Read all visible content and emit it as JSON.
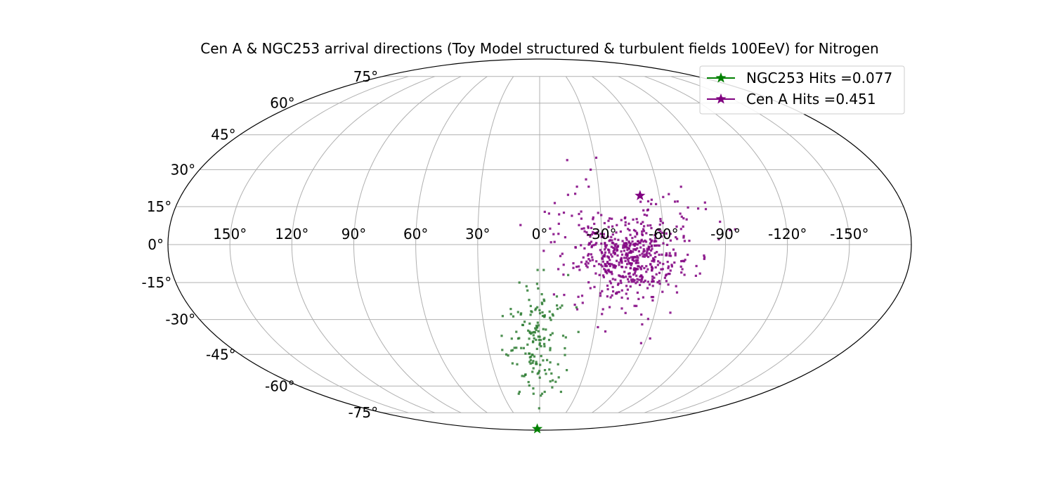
{
  "chart_data": {
    "type": "scatter",
    "projection": "mollweide",
    "title": "Cen A & NGC253 arrival directions (Toy Model structured & turbulent fields 100EeV) for Nitrogen",
    "xlabel": "",
    "ylabel": "",
    "grid": true,
    "x_reversed": true,
    "xlim": [
      -180,
      180
    ],
    "ylim": [
      -90,
      90
    ],
    "x_ticks": [
      150,
      120,
      90,
      60,
      30,
      0,
      -30,
      -60,
      -90,
      -120,
      -150
    ],
    "x_tick_labels": [
      "150°",
      "120°",
      "90°",
      "60°",
      "30°",
      "0°",
      "-30°",
      "-60°",
      "-90°",
      "-120°",
      "-150°"
    ],
    "y_ticks": [
      75,
      60,
      45,
      30,
      15,
      0,
      -15,
      -30,
      -45,
      -60,
      -75
    ],
    "y_tick_labels": [
      "75°",
      "60°",
      "45°",
      "30°",
      "15°",
      "0°",
      "-15°",
      "-30°",
      "-45°",
      "-60°",
      "-75°"
    ],
    "legend": {
      "position": "top-right",
      "entries": [
        {
          "label": "NGC253 Hits =0.077",
          "color": "#008000",
          "marker": "star"
        },
        {
          "label": "Cen A Hits =0.451",
          "color": "#800080",
          "marker": "star"
        }
      ]
    },
    "sources": [
      {
        "name": "NGC253",
        "lon": 10.0,
        "lat": -87.9,
        "color": "#008000"
      },
      {
        "name": "Cen A",
        "lon": -50.4,
        "lat": 19.4,
        "color": "#800080"
      }
    ],
    "series": [
      {
        "name": "Cen A",
        "color": "#800080",
        "clusters": [
          {
            "lon": -45,
            "lat": -6,
            "sd_lon": 12,
            "sd_lat": 7,
            "count": 420
          },
          {
            "lon": -22,
            "lat": 3,
            "sd_lon": 13,
            "sd_lat": 7,
            "count": 80
          },
          {
            "lon": -60,
            "lat": 5,
            "sd_lon": 14,
            "sd_lat": 8,
            "count": 60
          },
          {
            "lon": -40,
            "lat": -22,
            "sd_lon": 14,
            "sd_lat": 5,
            "count": 25
          }
        ],
        "points": [
          {
            "lon": -15,
            "lat": 34
          },
          {
            "lon": -31,
            "lat": 35
          },
          {
            "lon": -27,
            "lat": 30
          },
          {
            "lon": -24,
            "lat": 26
          },
          {
            "lon": -19,
            "lat": 23
          },
          {
            "lon": -25,
            "lat": 23
          },
          {
            "lon": -65,
            "lat": 20
          },
          {
            "lon": -82,
            "lat": 14
          },
          {
            "lon": -95,
            "lat": 6
          },
          {
            "lon": -88,
            "lat": 9
          },
          {
            "lon": -58,
            "lat": -40
          },
          {
            "lon": -62,
            "lat": -38
          },
          {
            "lon": -36,
            "lat": -35
          },
          {
            "lon": -55,
            "lat": -32
          },
          {
            "lon": -80,
            "lat": -5
          }
        ]
      },
      {
        "name": "NGC253",
        "color": "#2e7d32",
        "clusters": [
          {
            "lon": 2,
            "lat": -38,
            "sd_lon": 8,
            "sd_lat": 12,
            "count": 150
          }
        ],
        "points": [
          {
            "lon": 16,
            "lat": -63
          },
          {
            "lon": 17,
            "lat": -64
          },
          {
            "lon": -2,
            "lat": -64
          },
          {
            "lon": -1,
            "lat": -65
          },
          {
            "lon": -4,
            "lat": -63
          },
          {
            "lon": -17,
            "lat": -63
          },
          {
            "lon": 5,
            "lat": -64
          },
          {
            "lon": 20,
            "lat": -45
          },
          {
            "lon": 22,
            "lat": -43
          },
          {
            "lon": 12,
            "lat": -55
          },
          {
            "lon": 8,
            "lat": -58
          },
          {
            "lon": -14,
            "lat": -12
          },
          {
            "lon": -2,
            "lat": -10
          },
          {
            "lon": 1,
            "lat": -10
          },
          {
            "lon": 10,
            "lat": -15
          }
        ]
      }
    ]
  }
}
